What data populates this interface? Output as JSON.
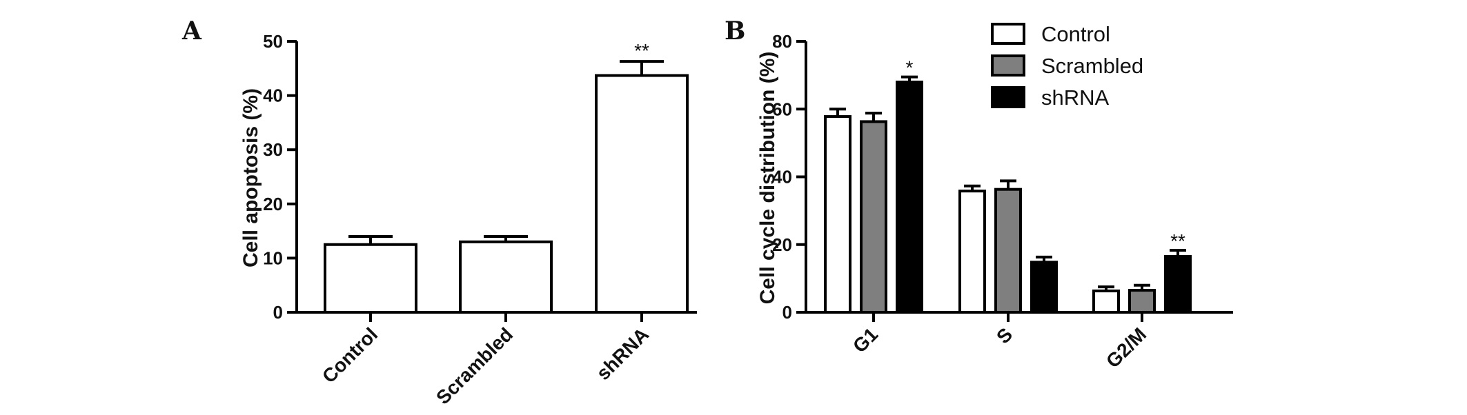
{
  "chart_data": [
    {
      "panel": "A",
      "type": "bar",
      "ylabel": "Cell apoptosis (%)",
      "ylim": [
        0,
        50
      ],
      "yticks": [
        0,
        10,
        20,
        30,
        40,
        50
      ],
      "categories": [
        "Control",
        "Scrambled",
        "shRNA"
      ],
      "values": [
        12.5,
        13.0,
        43.7
      ],
      "errors": [
        1.5,
        1.0,
        2.6
      ],
      "annotations": [
        "",
        "",
        "**"
      ],
      "bar_color": "#ffffff"
    },
    {
      "panel": "B",
      "type": "bar",
      "ylabel": "Cell cycle distribution (%)",
      "ylim": [
        0,
        80
      ],
      "yticks": [
        0,
        20,
        40,
        60,
        80
      ],
      "categories": [
        "G1",
        "S",
        "G2/M"
      ],
      "series": [
        {
          "name": "Control",
          "color": "#ffffff",
          "values": [
            57.8,
            35.8,
            6.3
          ],
          "errors": [
            2.2,
            1.5,
            1.2
          ],
          "annotations": [
            "",
            "",
            ""
          ]
        },
        {
          "name": "Scrambled",
          "color": "#7f7f7f",
          "values": [
            56.3,
            36.3,
            6.5
          ],
          "errors": [
            2.5,
            2.5,
            1.5
          ],
          "annotations": [
            "",
            "",
            ""
          ]
        },
        {
          "name": "shRNA",
          "color": "#000000",
          "values": [
            68.0,
            14.8,
            16.5
          ],
          "errors": [
            1.5,
            1.5,
            1.8
          ],
          "annotations": [
            "*",
            "",
            "**"
          ]
        }
      ],
      "legend_position": "top-right"
    }
  ]
}
